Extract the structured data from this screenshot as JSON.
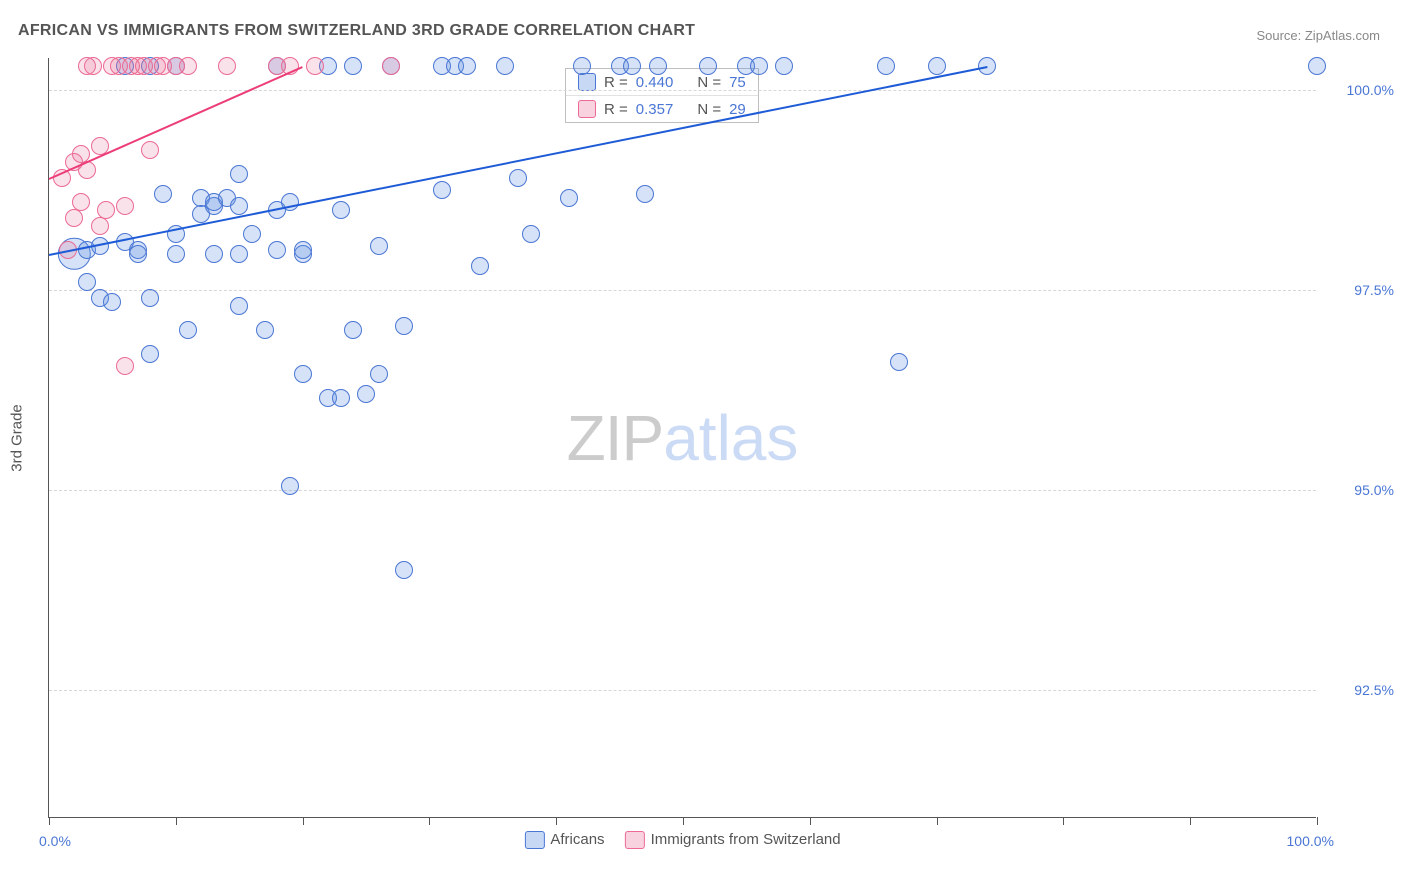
{
  "title": "AFRICAN VS IMMIGRANTS FROM SWITZERLAND 3RD GRADE CORRELATION CHART",
  "source": "Source: ZipAtlas.com",
  "yaxis_title": "3rd Grade",
  "watermark_zip": "ZIP",
  "watermark_atlas": "atlas",
  "chart": {
    "type": "scatter",
    "background_color": "#ffffff",
    "grid_color": "#d6d6d6",
    "axis_color": "#555555",
    "xlim": [
      0,
      100
    ],
    "ylim": [
      90.9,
      100.4
    ],
    "ytick_values": [
      92.5,
      95.0,
      97.5,
      100.0
    ],
    "ytick_labels": [
      "92.5%",
      "95.0%",
      "97.5%",
      "100.0%"
    ],
    "xtick_values": [
      0,
      10,
      20,
      30,
      40,
      50,
      60,
      70,
      80,
      90,
      100
    ],
    "xlabel_min": "0.0%",
    "xlabel_max": "100.0%",
    "marker_radius": 9,
    "big_marker_radius": 16,
    "series": [
      {
        "name": "Africans",
        "color_fill": "rgba(92,142,224,0.26)",
        "color_stroke": "#4a76d4",
        "class": "blue",
        "trend": {
          "x1": 0,
          "y1": 97.95,
          "x2": 74,
          "y2": 100.3,
          "color": "#1e5bd6"
        },
        "R_label": "R =",
        "R_value": "0.440",
        "N_label": "N =",
        "N_value": "75",
        "points": [
          [
            2,
            97.95,
            1.8
          ],
          [
            3,
            98.0,
            1
          ],
          [
            3,
            97.6,
            1
          ],
          [
            4,
            97.4,
            1
          ],
          [
            4,
            98.05,
            1
          ],
          [
            5,
            97.35,
            1
          ],
          [
            6,
            98.1,
            1
          ],
          [
            6,
            100.3,
            1
          ],
          [
            7,
            98.0,
            1
          ],
          [
            7,
            97.95,
            1
          ],
          [
            8,
            100.3,
            1
          ],
          [
            8,
            97.4,
            1
          ],
          [
            8,
            96.7,
            1
          ],
          [
            9,
            98.7,
            1
          ],
          [
            10,
            100.3,
            1
          ],
          [
            10,
            98.2,
            1
          ],
          [
            10,
            97.95,
            1
          ],
          [
            11,
            97.0,
            1
          ],
          [
            12,
            98.65,
            1
          ],
          [
            12,
            98.45,
            1
          ],
          [
            13,
            98.55,
            1
          ],
          [
            13,
            97.95,
            1
          ],
          [
            13,
            98.6,
            1
          ],
          [
            14,
            98.65,
            1
          ],
          [
            15,
            98.95,
            1
          ],
          [
            15,
            98.55,
            1
          ],
          [
            15,
            97.3,
            1
          ],
          [
            15,
            97.95,
            1
          ],
          [
            16,
            98.2,
            1
          ],
          [
            17,
            97.0,
            1
          ],
          [
            18,
            100.3,
            1
          ],
          [
            18,
            98.0,
            1
          ],
          [
            18,
            98.5,
            1
          ],
          [
            19,
            95.05,
            1
          ],
          [
            19,
            98.6,
            1
          ],
          [
            20,
            96.45,
            1
          ],
          [
            20,
            97.95,
            1
          ],
          [
            20,
            98.0,
            1
          ],
          [
            22,
            100.3,
            1
          ],
          [
            22,
            96.15,
            1
          ],
          [
            23,
            96.15,
            1
          ],
          [
            23,
            98.5,
            1
          ],
          [
            24,
            100.3,
            1
          ],
          [
            24,
            97.0,
            1
          ],
          [
            25,
            96.2,
            1
          ],
          [
            26,
            96.45,
            1
          ],
          [
            26,
            98.05,
            1
          ],
          [
            27,
            100.3,
            1
          ],
          [
            28,
            94.0,
            1
          ],
          [
            28,
            97.05,
            1
          ],
          [
            31,
            100.3,
            1
          ],
          [
            31,
            98.75,
            1
          ],
          [
            32,
            100.3,
            1
          ],
          [
            33,
            100.3,
            1
          ],
          [
            34,
            97.8,
            1
          ],
          [
            36,
            100.3,
            1
          ],
          [
            37,
            98.9,
            1
          ],
          [
            38,
            98.2,
            1
          ],
          [
            41,
            98.65,
            1
          ],
          [
            42,
            100.3,
            1
          ],
          [
            45,
            100.3,
            1
          ],
          [
            46,
            100.3,
            1
          ],
          [
            47,
            98.7,
            1
          ],
          [
            48,
            100.3,
            1
          ],
          [
            52,
            100.3,
            1
          ],
          [
            55,
            100.3,
            1
          ],
          [
            56,
            100.3,
            1
          ],
          [
            58,
            100.3,
            1
          ],
          [
            66,
            100.3,
            1
          ],
          [
            67,
            96.6,
            1
          ],
          [
            70,
            100.3,
            1
          ],
          [
            74,
            100.3,
            1
          ],
          [
            100,
            100.3,
            1
          ]
        ]
      },
      {
        "name": "Immigrants from Switzerland",
        "color_fill": "rgba(232,110,150,0.20)",
        "color_stroke": "#ec6a93",
        "class": "pink",
        "trend": {
          "x1": 0,
          "y1": 98.9,
          "x2": 20,
          "y2": 100.3,
          "color": "#ec3d78"
        },
        "R_label": "R =",
        "R_value": "0.357",
        "N_label": "N =",
        "N_value": "29",
        "points": [
          [
            1,
            98.9,
            1
          ],
          [
            1.5,
            98.0,
            1
          ],
          [
            2,
            99.1,
            1
          ],
          [
            2,
            98.4,
            1
          ],
          [
            2.5,
            98.6,
            1
          ],
          [
            2.5,
            99.2,
            1
          ],
          [
            3,
            100.3,
            1
          ],
          [
            3,
            99.0,
            1
          ],
          [
            3.5,
            100.3,
            1
          ],
          [
            4,
            99.3,
            1
          ],
          [
            4,
            98.3,
            1
          ],
          [
            4.5,
            98.5,
            1
          ],
          [
            5,
            100.3,
            1
          ],
          [
            5.5,
            100.3,
            1
          ],
          [
            6,
            98.55,
            1
          ],
          [
            6,
            96.55,
            1
          ],
          [
            6.5,
            100.3,
            1
          ],
          [
            7,
            100.3,
            1
          ],
          [
            7.5,
            100.3,
            1
          ],
          [
            8,
            99.25,
            1
          ],
          [
            8.5,
            100.3,
            1
          ],
          [
            9,
            100.3,
            1
          ],
          [
            10,
            100.3,
            1
          ],
          [
            11,
            100.3,
            1
          ],
          [
            14,
            100.3,
            1
          ],
          [
            18,
            100.3,
            1
          ],
          [
            19,
            100.3,
            1
          ],
          [
            21,
            100.3,
            1
          ],
          [
            27,
            100.3,
            1
          ]
        ]
      }
    ],
    "bottom_legend": [
      {
        "class": "blue",
        "label": "Africans"
      },
      {
        "class": "pink",
        "label": "Immigrants from Switzerland"
      }
    ]
  }
}
